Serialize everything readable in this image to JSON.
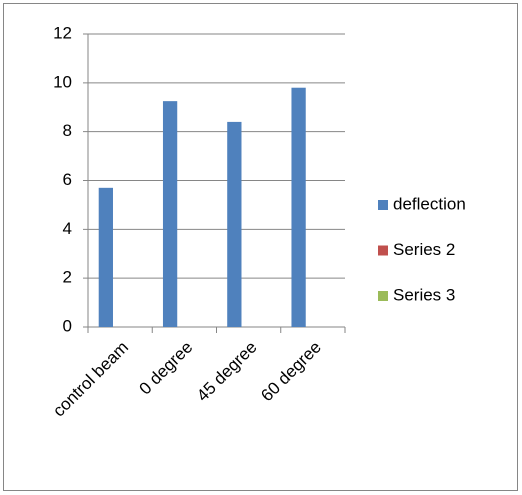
{
  "chart_data": {
    "type": "bar",
    "categories": [
      "control beam",
      "0 degree",
      "45 degree",
      "60 degree"
    ],
    "series": [
      {
        "name": "deflection",
        "color": "#4f81bd",
        "values": [
          5.7,
          9.25,
          8.4,
          9.8
        ]
      },
      {
        "name": "Series 2",
        "color": "#c0504d",
        "values": [
          null,
          null,
          null,
          null
        ]
      },
      {
        "name": "Series 3",
        "color": "#9bbb59",
        "values": [
          null,
          null,
          null,
          null
        ]
      }
    ],
    "ylim": [
      0,
      12
    ],
    "yticks": [
      0,
      2,
      4,
      6,
      8,
      10,
      12
    ],
    "grid": true,
    "legend": "right"
  }
}
